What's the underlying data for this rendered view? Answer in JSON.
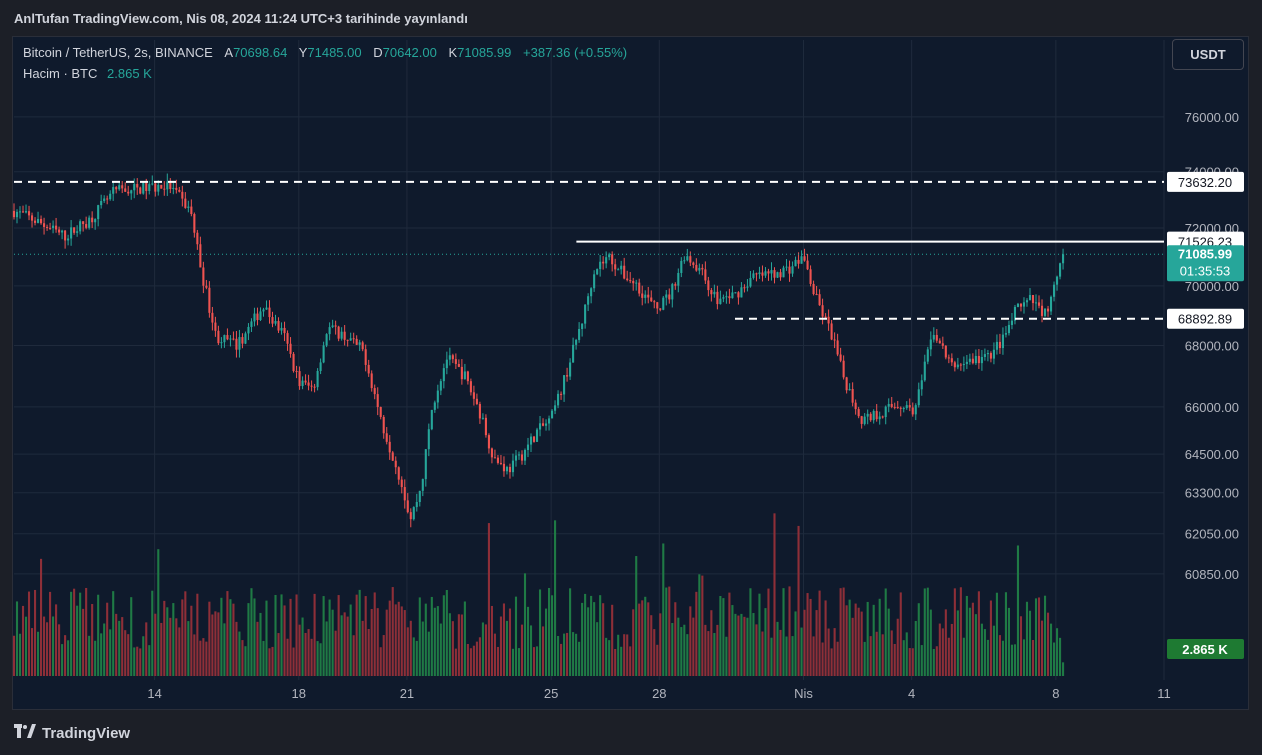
{
  "header": {
    "publish_line": "AnlTufan TradingView.com, Nis 08, 2024 11:24 UTC+3 tarihinde yayınlandı"
  },
  "legend": {
    "symbol": "Bitcoin / TetherUS, 2s, BINANCE",
    "open_label": "A",
    "open": "70698.64",
    "high_label": "Y",
    "high": "71485.00",
    "low_label": "D",
    "low": "70642.00",
    "close_label": "K",
    "close": "71085.99",
    "change": "+387.36 (+0.55%)",
    "volume_label": "Hacim · BTC",
    "volume_value": "2.865 K"
  },
  "toolbar": {
    "currency_button": "USDT"
  },
  "branding": {
    "logo_icon": "tradingview-logo-icon",
    "name": "TradingView"
  },
  "colors": {
    "up": "#26a69a",
    "down": "#ef5350",
    "vol_up": "#1f7a45",
    "vol_down": "#8e2f38",
    "background": "#0f1a2c",
    "grid": "#1f2a3c"
  },
  "chart_data": {
    "type": "candlestick",
    "symbol": "Bitcoin / TetherUS",
    "interval": "2s",
    "exchange": "BINANCE",
    "y_axis": {
      "scale": "log",
      "ticks": [
        76000,
        74000,
        72000,
        70000,
        68000,
        66000,
        64500,
        63300,
        62050,
        60850
      ],
      "tick_labels": [
        "76000.00",
        "74000.00",
        "72000.00",
        "70000.00",
        "68000.00",
        "66000.00",
        "64500.00",
        "63300.00",
        "62050.00",
        "60850.00"
      ],
      "range": [
        59500,
        77000
      ]
    },
    "x_axis": {
      "tick_labels": [
        "14",
        "18",
        "21",
        "25",
        "28",
        "Nis",
        "4",
        "8",
        "11"
      ],
      "tick_days": [
        14,
        18,
        21,
        25,
        28,
        32,
        35,
        39,
        42
      ],
      "range_days": [
        10.1,
        42
      ]
    },
    "price_keypoints": [
      [
        10.1,
        72600
      ],
      [
        10.8,
        72200
      ],
      [
        11.5,
        71700
      ],
      [
        12.2,
        72300
      ],
      [
        12.9,
        73300
      ],
      [
        13.6,
        73400
      ],
      [
        14.4,
        73500
      ],
      [
        15.0,
        72600
      ],
      [
        15.3,
        70500
      ],
      [
        15.7,
        68300
      ],
      [
        16.3,
        68000
      ],
      [
        17.0,
        69300
      ],
      [
        17.6,
        68300
      ],
      [
        18.0,
        66800
      ],
      [
        18.4,
        66600
      ],
      [
        18.8,
        68600
      ],
      [
        19.3,
        68300
      ],
      [
        19.8,
        67800
      ],
      [
        20.3,
        65500
      ],
      [
        20.8,
        63800
      ],
      [
        21.1,
        62500
      ],
      [
        21.4,
        63500
      ],
      [
        21.7,
        66000
      ],
      [
        22.1,
        67600
      ],
      [
        22.6,
        67000
      ],
      [
        23.0,
        65900
      ],
      [
        23.4,
        64400
      ],
      [
        23.8,
        64000
      ],
      [
        24.2,
        64500
      ],
      [
        24.6,
        65200
      ],
      [
        25.0,
        65600
      ],
      [
        25.4,
        67000
      ],
      [
        25.9,
        69000
      ],
      [
        26.2,
        70600
      ],
      [
        26.6,
        71000
      ],
      [
        27.0,
        70400
      ],
      [
        27.4,
        70000
      ],
      [
        27.9,
        69200
      ],
      [
        28.3,
        69700
      ],
      [
        28.7,
        71100
      ],
      [
        29.1,
        70600
      ],
      [
        29.6,
        69500
      ],
      [
        30.1,
        69700
      ],
      [
        30.6,
        70300
      ],
      [
        31.1,
        70400
      ],
      [
        31.6,
        70600
      ],
      [
        32.0,
        71000
      ],
      [
        32.3,
        69700
      ],
      [
        32.8,
        68300
      ],
      [
        33.1,
        67000
      ],
      [
        33.6,
        65600
      ],
      [
        34.1,
        65800
      ],
      [
        34.6,
        66100
      ],
      [
        35.1,
        65900
      ],
      [
        35.6,
        68500
      ],
      [
        36.1,
        67300
      ],
      [
        36.6,
        67500
      ],
      [
        37.1,
        67600
      ],
      [
        37.6,
        68300
      ],
      [
        37.9,
        69200
      ],
      [
        38.3,
        69500
      ],
      [
        38.7,
        69100
      ],
      [
        38.9,
        69600
      ],
      [
        39.2,
        71086
      ]
    ],
    "candle_count": 350,
    "horizontal_lines": [
      {
        "price": 73632.2,
        "label": "73632.20",
        "style": "dashed",
        "from_day": 10.1
      },
      {
        "price": 71526.23,
        "label": "71526.23",
        "style": "solid",
        "from_day": 25.7
      },
      {
        "price": 68892.89,
        "label": "68892.89",
        "style": "dashed",
        "from_day": 30.1
      }
    ],
    "last_price": {
      "price": 71085.99,
      "label": "71085.99",
      "countdown": "01:35:53"
    },
    "volume": {
      "last_label": "2.865 K",
      "max_btc": 12.5
    }
  }
}
